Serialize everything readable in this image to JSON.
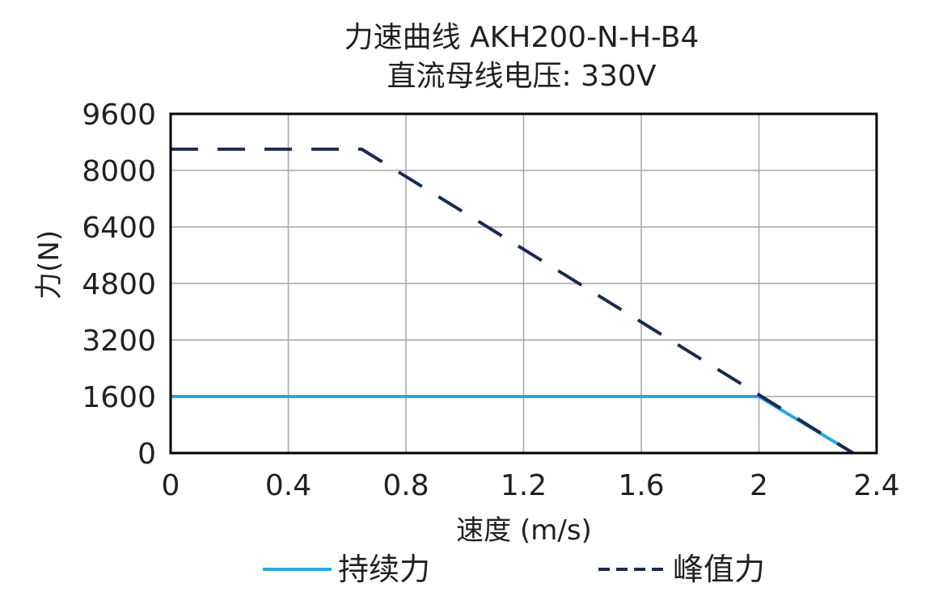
{
  "chart_data": {
    "type": "line",
    "title": "力速曲线 AKH200-N-H-B4",
    "subtitle": "直流母线电压: 330V",
    "xlabel": "速度 (m/s)",
    "ylabel": "力(N)",
    "xlim": [
      0,
      2.4
    ],
    "ylim": [
      0,
      9600
    ],
    "xticks": [
      0,
      0.4,
      0.8,
      1.2,
      1.6,
      2,
      2.4
    ],
    "xtick_labels": [
      "0",
      "0.4",
      "0.8",
      "1.2",
      "1.6",
      "2",
      "2.4"
    ],
    "yticks": [
      0,
      1600,
      3200,
      4800,
      6400,
      8000,
      9600
    ],
    "ytick_labels": [
      "0",
      "1600",
      "3200",
      "4800",
      "6400",
      "8000",
      "9600"
    ],
    "grid": true,
    "legend_position": "bottom",
    "series": [
      {
        "name": "持续力",
        "style": "solid",
        "color": "#29a8e0",
        "x": [
          0,
          2.0,
          2.32
        ],
        "y": [
          1600,
          1600,
          0
        ]
      },
      {
        "name": "峰值力",
        "style": "dashed",
        "color": "#1a2a4f",
        "x": [
          0,
          0.65,
          2.32
        ],
        "y": [
          8600,
          8600,
          0
        ]
      }
    ]
  }
}
